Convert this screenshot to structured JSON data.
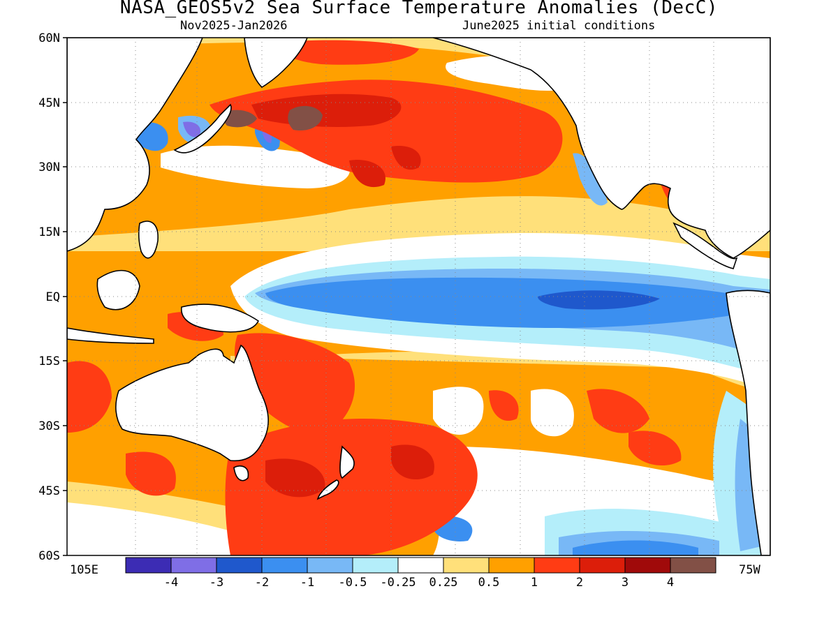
{
  "title": "NASA_GEOS5v2 Sea Surface Temperature Anomalies (DecC)",
  "subtitle_left": "Nov2025-Jan2026",
  "subtitle_right": "June2025 initial conditions",
  "lat_labels": [
    "60N",
    "45N",
    "30N",
    "15N",
    "EQ",
    "15S",
    "30S",
    "45S",
    "60S"
  ],
  "lon_left_label": "105E",
  "lon_right_label": "75W",
  "colorbar": {
    "colors": [
      "#3c2cb4",
      "#7f6ee6",
      "#1f58cc",
      "#3b8ff0",
      "#78b8f6",
      "#b4eefa",
      "#ffffff",
      "#ffe07a",
      "#ffa000",
      "#ff3c14",
      "#dc1e0a",
      "#a00a0a",
      "#825046"
    ],
    "labels": [
      "-4",
      "-3",
      "-2",
      "-1",
      "-0.5",
      "-0.25",
      "0.25",
      "0.5",
      "1",
      "2",
      "3",
      "4"
    ]
  }
}
